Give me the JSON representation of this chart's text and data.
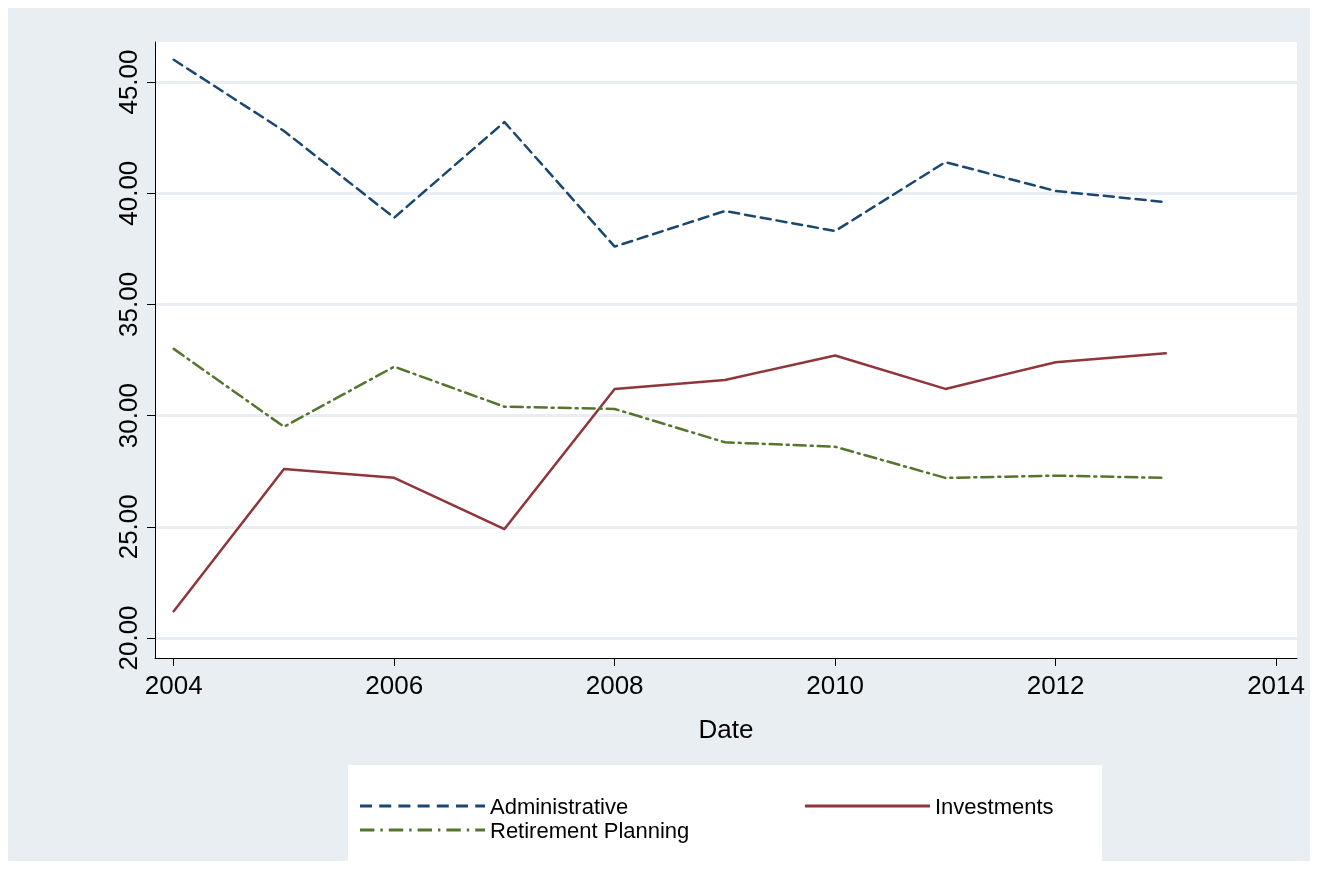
{
  "chart_data": {
    "type": "line",
    "xlabel": "Date",
    "x": [
      2004,
      2005,
      2006,
      2007,
      2008,
      2009,
      2010,
      2011,
      2012,
      2013
    ],
    "xlim": [
      2003.83,
      2014.19
    ],
    "xticks": [
      2004,
      2006,
      2008,
      2010,
      2012,
      2014
    ],
    "ylim": [
      19.1,
      46.8
    ],
    "yticks": [
      {
        "value": 20,
        "label": "20.00"
      },
      {
        "value": 25,
        "label": "25.00"
      },
      {
        "value": 30,
        "label": "30.00"
      },
      {
        "value": 35,
        "label": "35.00"
      },
      {
        "value": 40,
        "label": "40.00"
      },
      {
        "value": 45,
        "label": "45.00"
      }
    ],
    "grid": "y",
    "legend": "bottom",
    "marker": "none",
    "series": [
      {
        "name": "Administrative",
        "color": "#1a476f",
        "line_style": "dashed",
        "values": [
          46.0,
          42.8,
          38.9,
          43.2,
          37.6,
          39.2,
          38.3,
          41.4,
          40.1,
          39.6
        ]
      },
      {
        "name": "Investments",
        "color": "#90353b",
        "line_style": "solid",
        "values": [
          21.2,
          27.6,
          27.2,
          24.9,
          31.2,
          31.6,
          32.7,
          31.2,
          32.4,
          32.8
        ]
      },
      {
        "name": "Retirement Planning",
        "color": "#55752f",
        "line_style": "dashdot",
        "values": [
          33.0,
          29.5,
          32.2,
          30.4,
          30.3,
          28.8,
          28.6,
          27.2,
          27.3,
          27.2
        ]
      }
    ]
  }
}
